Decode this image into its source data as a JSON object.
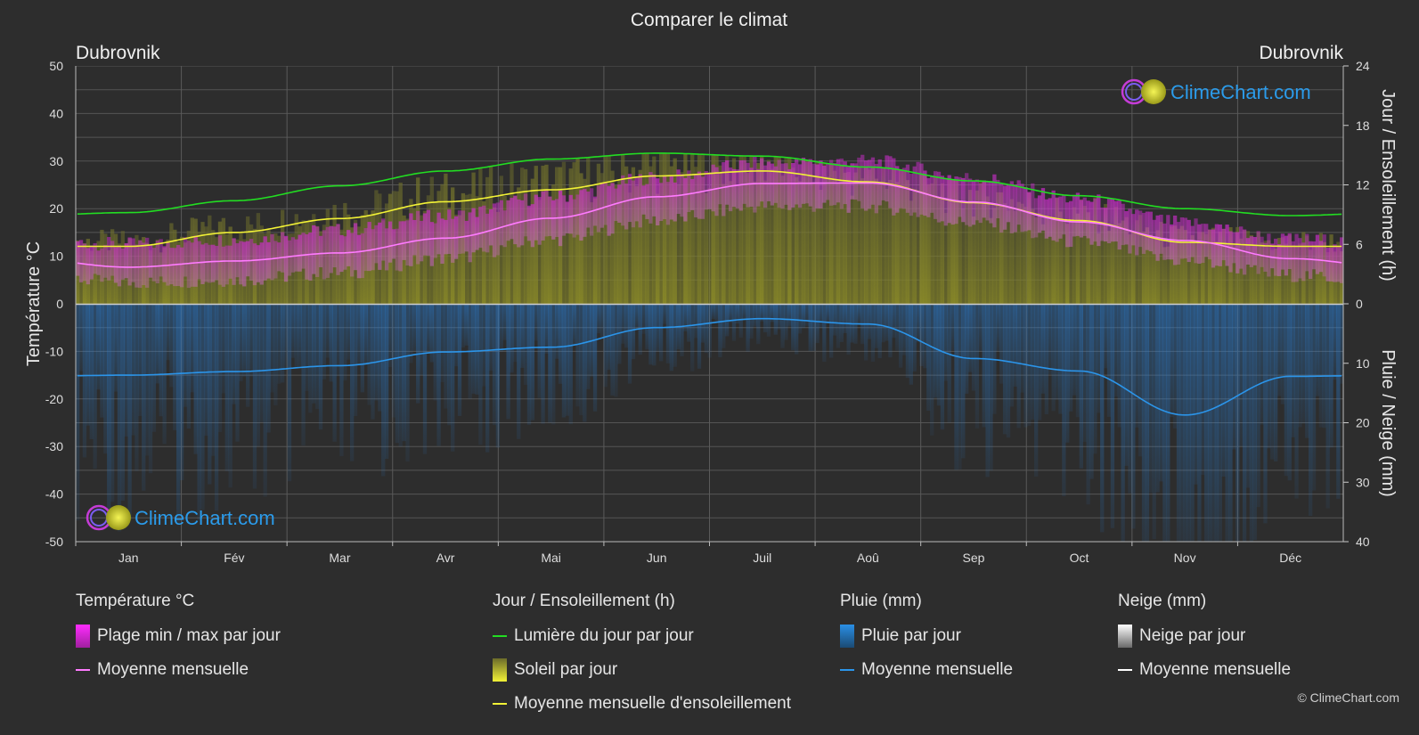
{
  "title": "Comparer le climat",
  "location_left": "Dubrovnik",
  "location_right": "Dubrovnik",
  "axis_left_label": "Température °C",
  "axis_right_top_label": "Jour / Ensoleillement (h)",
  "axis_right_bottom_label": "Pluie / Neige (mm)",
  "brand": "ClimeChart.com",
  "copyright": "© ClimeChart.com",
  "colors": {
    "background": "#2d2d2d",
    "daylight": "#22dd22",
    "sunshine_fill": "#8c8c2a",
    "sunshine_line": "#f2f236",
    "temp_range": "#d62ad6",
    "temp_mean": "#ff7bff",
    "rain": "#2a7fd4",
    "rain_line": "#2b95ea",
    "snow_line": "#ffffff",
    "brand_text": "#2b9bea"
  },
  "legend": {
    "temperature": {
      "title": "Température °C",
      "range": "Plage min / max par jour",
      "mean": "Moyenne mensuelle"
    },
    "sun": {
      "title": "Jour / Ensoleillement (h)",
      "daylight": "Lumière du jour par jour",
      "sunshine": "Soleil par jour",
      "sunshine_mean": "Moyenne mensuelle d'ensoleillement"
    },
    "rain": {
      "title": "Pluie (mm)",
      "daily": "Pluie par jour",
      "mean": "Moyenne mensuelle"
    },
    "snow": {
      "title": "Neige (mm)",
      "daily": "Neige par jour",
      "mean": "Moyenne mensuelle"
    }
  },
  "chart_data": {
    "type": "area",
    "title": "Comparer le climat",
    "categories": [
      "Jan",
      "Fév",
      "Mar",
      "Avr",
      "Mai",
      "Jun",
      "Juil",
      "Aoû",
      "Sep",
      "Oct",
      "Nov",
      "Déc"
    ],
    "y_left": {
      "label": "Température °C",
      "range": [
        -50,
        50
      ],
      "ticks": [
        50,
        40,
        30,
        20,
        10,
        0,
        -10,
        -20,
        -30,
        -40,
        -50
      ]
    },
    "y_right_top": {
      "label": "Jour / Ensoleillement (h)",
      "range": [
        0,
        24
      ],
      "ticks": [
        24,
        18,
        12,
        6,
        0
      ]
    },
    "y_right_bottom": {
      "label": "Pluie / Neige (mm)",
      "range": [
        0,
        40
      ],
      "ticks": [
        0,
        10,
        20,
        30,
        40
      ]
    },
    "grid": true,
    "series": [
      {
        "name": "Lumière du jour par jour",
        "unit": "h",
        "values": [
          9.2,
          10.4,
          11.9,
          13.4,
          14.6,
          15.2,
          14.9,
          13.8,
          12.4,
          10.9,
          9.6,
          8.9
        ]
      },
      {
        "name": "Moyenne mensuelle d'ensoleillement",
        "unit": "h",
        "values": [
          5.8,
          7.2,
          8.6,
          10.3,
          11.5,
          12.9,
          13.4,
          12.3,
          10.2,
          8.4,
          6.2,
          5.8
        ]
      },
      {
        "name": "Plage min / max par jour (max)",
        "unit": "°C",
        "values": [
          12.5,
          13.5,
          15.5,
          18.5,
          22.5,
          26.5,
          29.5,
          30.0,
          26.5,
          22.0,
          17.0,
          13.5
        ]
      },
      {
        "name": "Plage min / max par jour (min)",
        "unit": "°C",
        "values": [
          4.5,
          5.0,
          6.5,
          9.5,
          13.5,
          17.5,
          20.5,
          20.5,
          17.0,
          13.0,
          9.0,
          6.0
        ]
      },
      {
        "name": "Température moyenne mensuelle",
        "unit": "°C",
        "values": [
          7.7,
          9.0,
          10.7,
          13.8,
          18.0,
          22.5,
          25.3,
          25.4,
          21.4,
          17.2,
          13.3,
          9.5
        ]
      },
      {
        "name": "Pluie moyenne mensuelle",
        "unit": "mm",
        "values": [
          12.0,
          11.4,
          10.4,
          8.1,
          7.3,
          4.0,
          2.5,
          3.4,
          9.2,
          11.3,
          18.7,
          12.2
        ]
      },
      {
        "name": "Neige moyenne mensuelle",
        "unit": "mm",
        "values": [
          0,
          0,
          0,
          0,
          0,
          0,
          0,
          0,
          0,
          0,
          0,
          0
        ]
      }
    ]
  }
}
